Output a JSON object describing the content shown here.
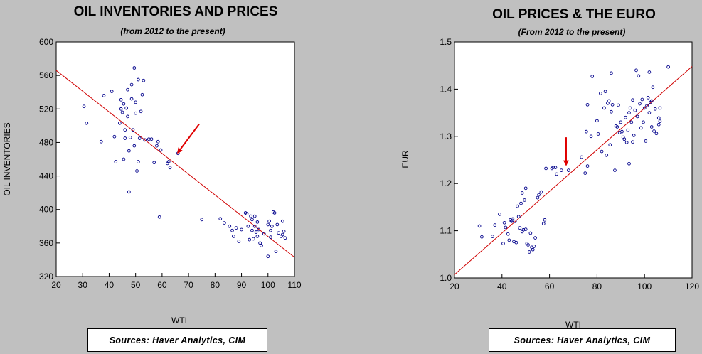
{
  "chart_data": [
    {
      "type": "scatter",
      "title": "OIL INVENTORIES AND PRICES",
      "subtitle": "(from 2012 to the present)",
      "xlabel": "WTI",
      "ylabel": "OIL INVENTORIES",
      "xlim": [
        20,
        110
      ],
      "ylim": [
        320,
        600
      ],
      "xticks": [
        "20",
        "30",
        "40",
        "50",
        "60",
        "70",
        "80",
        "90",
        "100",
        "110"
      ],
      "yticks": [
        "320",
        "360",
        "400",
        "440",
        "480",
        "520",
        "560",
        "600"
      ],
      "grid": false,
      "point_color": "#00008b",
      "trend_color": "#d00000",
      "trendline": {
        "x": [
          20,
          110
        ],
        "y": [
          566,
          343
        ]
      },
      "arrow": {
        "from": [
          74,
          502
        ],
        "to": [
          66,
          468
        ],
        "color": "#e00000"
      },
      "points": [
        [
          30.5,
          523
        ],
        [
          31.5,
          503
        ],
        [
          37,
          481
        ],
        [
          38,
          536
        ],
        [
          41,
          541
        ],
        [
          42,
          487
        ],
        [
          42.5,
          457
        ],
        [
          44,
          503
        ],
        [
          44.5,
          520
        ],
        [
          44.5,
          531
        ],
        [
          45,
          516
        ],
        [
          45.5,
          526
        ],
        [
          45.5,
          460
        ],
        [
          46,
          495
        ],
        [
          46,
          485
        ],
        [
          46.5,
          521
        ],
        [
          47,
          543
        ],
        [
          47,
          511
        ],
        [
          47.5,
          421
        ],
        [
          47.5,
          470
        ],
        [
          48,
          486
        ],
        [
          48.5,
          549
        ],
        [
          48.5,
          532
        ],
        [
          49,
          495
        ],
        [
          49.5,
          569
        ],
        [
          49.5,
          476
        ],
        [
          50,
          528
        ],
        [
          50,
          515
        ],
        [
          50.5,
          446
        ],
        [
          51,
          457
        ],
        [
          51,
          555
        ],
        [
          51.5,
          485
        ],
        [
          52,
          517
        ],
        [
          52.5,
          537
        ],
        [
          53,
          554
        ],
        [
          53.5,
          483
        ],
        [
          55,
          484
        ],
        [
          56,
          484
        ],
        [
          57,
          456
        ],
        [
          58,
          476
        ],
        [
          58.5,
          481
        ],
        [
          59,
          391
        ],
        [
          59.5,
          471
        ],
        [
          62,
          455
        ],
        [
          62.5,
          457
        ],
        [
          63,
          450
        ],
        [
          66,
          467
        ],
        [
          75,
          388
        ],
        [
          82,
          389
        ],
        [
          83.5,
          384
        ],
        [
          85.5,
          380
        ],
        [
          86.5,
          375
        ],
        [
          87,
          368
        ],
        [
          88,
          378
        ],
        [
          89,
          362
        ],
        [
          90,
          376
        ],
        [
          91.5,
          396
        ],
        [
          92,
          395
        ],
        [
          92.5,
          380
        ],
        [
          93,
          364
        ],
        [
          93.5,
          392
        ],
        [
          94,
          388
        ],
        [
          94,
          375
        ],
        [
          94.5,
          365
        ],
        [
          95,
          380
        ],
        [
          95,
          392
        ],
        [
          95.5,
          373
        ],
        [
          96,
          385
        ],
        [
          96,
          368
        ],
        [
          96.5,
          376
        ],
        [
          97,
          360
        ],
        [
          97.5,
          357
        ],
        [
          98.5,
          371
        ],
        [
          100,
          344
        ],
        [
          100,
          382
        ],
        [
          100.5,
          386
        ],
        [
          101,
          375
        ],
        [
          101,
          367
        ],
        [
          101.5,
          380
        ],
        [
          102,
          397
        ],
        [
          102.5,
          396
        ],
        [
          103,
          350
        ],
        [
          103.5,
          382
        ],
        [
          104,
          372
        ],
        [
          105,
          368
        ],
        [
          105.5,
          386
        ],
        [
          105.5,
          370
        ],
        [
          106,
          374
        ],
        [
          106.5,
          366
        ]
      ],
      "source": "Sources:  Haver Analytics, CIM"
    },
    {
      "type": "scatter",
      "title": "OIL PRICES & THE EURO",
      "subtitle": "(From 2012 to the present)",
      "xlabel": "WTI",
      "ylabel": "EUR",
      "xlim": [
        20,
        120
      ],
      "ylim": [
        1.0,
        1.5
      ],
      "xticks": [
        "20",
        "40",
        "60",
        "80",
        "100",
        "120"
      ],
      "yticks": [
        "1.0",
        "1.1",
        "1.2",
        "1.3",
        "1.4",
        "1.5"
      ],
      "grid": false,
      "point_color": "#00008b",
      "trend_color": "#d00000",
      "trendline": {
        "x": [
          20,
          120
        ],
        "y": [
          1.007,
          1.448
        ]
      },
      "arrow": {
        "from": [
          67,
          1.298
        ],
        "to": [
          67,
          1.24
        ],
        "color": "#e00000"
      },
      "points": [
        [
          30.5,
          1.11
        ],
        [
          31.5,
          1.087
        ],
        [
          36,
          1.088
        ],
        [
          37,
          1.112
        ],
        [
          39,
          1.135
        ],
        [
          40.5,
          1.073
        ],
        [
          41,
          1.117
        ],
        [
          41.5,
          1.107
        ],
        [
          42.5,
          1.093
        ],
        [
          43,
          1.08
        ],
        [
          43.5,
          1.123
        ],
        [
          44,
          1.12
        ],
        [
          44.5,
          1.122
        ],
        [
          44.5,
          1.125
        ],
        [
          45,
          1.077
        ],
        [
          45.5,
          1.12
        ],
        [
          46,
          1.075
        ],
        [
          46.5,
          1.152
        ],
        [
          47,
          1.13
        ],
        [
          47.5,
          1.106
        ],
        [
          48,
          1.158
        ],
        [
          48.5,
          1.18
        ],
        [
          48.5,
          1.098
        ],
        [
          49,
          1.102
        ],
        [
          49.5,
          1.165
        ],
        [
          50,
          1.19
        ],
        [
          50,
          1.103
        ],
        [
          50.5,
          1.073
        ],
        [
          51,
          1.07
        ],
        [
          51.5,
          1.055
        ],
        [
          52,
          1.095
        ],
        [
          52.5,
          1.065
        ],
        [
          53,
          1.06
        ],
        [
          53.5,
          1.067
        ],
        [
          54,
          1.085
        ],
        [
          55,
          1.17
        ],
        [
          55.5,
          1.176
        ],
        [
          56.5,
          1.182
        ],
        [
          57.5,
          1.115
        ],
        [
          58,
          1.123
        ],
        [
          58.5,
          1.232
        ],
        [
          61,
          1.232
        ],
        [
          61.5,
          1.234
        ],
        [
          62.5,
          1.234
        ],
        [
          63,
          1.22
        ],
        [
          65,
          1.228
        ],
        [
          68,
          1.228
        ],
        [
          73.5,
          1.256
        ],
        [
          75,
          1.222
        ],
        [
          75.5,
          1.31
        ],
        [
          76,
          1.237
        ],
        [
          76,
          1.367
        ],
        [
          77.5,
          1.3
        ],
        [
          78,
          1.427
        ],
        [
          80,
          1.333
        ],
        [
          80.5,
          1.305
        ],
        [
          81.5,
          1.391
        ],
        [
          82,
          1.268
        ],
        [
          83,
          1.36
        ],
        [
          83.5,
          1.395
        ],
        [
          84,
          1.26
        ],
        [
          84.5,
          1.37
        ],
        [
          85,
          1.375
        ],
        [
          85.5,
          1.282
        ],
        [
          86,
          1.352
        ],
        [
          86,
          1.434
        ],
        [
          86.5,
          1.367
        ],
        [
          87.5,
          1.228
        ],
        [
          88,
          1.322
        ],
        [
          88.5,
          1.32
        ],
        [
          89,
          1.366
        ],
        [
          89.5,
          1.308
        ],
        [
          90,
          1.33
        ],
        [
          90.5,
          1.31
        ],
        [
          91,
          1.298
        ],
        [
          91.5,
          1.294
        ],
        [
          92,
          1.34
        ],
        [
          92.5,
          1.287
        ],
        [
          93,
          1.313
        ],
        [
          93.5,
          1.35
        ],
        [
          93.5,
          1.242
        ],
        [
          94,
          1.36
        ],
        [
          94.5,
          1.33
        ],
        [
          95,
          1.377
        ],
        [
          95,
          1.288
        ],
        [
          95.5,
          1.302
        ],
        [
          96,
          1.355
        ],
        [
          96.5,
          1.44
        ],
        [
          97,
          1.342
        ],
        [
          97.5,
          1.428
        ],
        [
          98,
          1.369
        ],
        [
          98.5,
          1.318
        ],
        [
          99,
          1.378
        ],
        [
          99.5,
          1.33
        ],
        [
          100,
          1.36
        ],
        [
          100.5,
          1.29
        ],
        [
          101,
          1.365
        ],
        [
          101.5,
          1.382
        ],
        [
          102,
          1.436
        ],
        [
          102,
          1.35
        ],
        [
          102.5,
          1.372
        ],
        [
          103,
          1.32
        ],
        [
          103,
          1.375
        ],
        [
          103.5,
          1.404
        ],
        [
          104,
          1.311
        ],
        [
          104.5,
          1.358
        ],
        [
          105,
          1.306
        ],
        [
          106,
          1.339
        ],
        [
          106,
          1.325
        ],
        [
          106.5,
          1.332
        ],
        [
          106.5,
          1.36
        ],
        [
          110,
          1.447
        ]
      ],
      "source": "Sources:  Haver Analytics, CIM"
    }
  ]
}
